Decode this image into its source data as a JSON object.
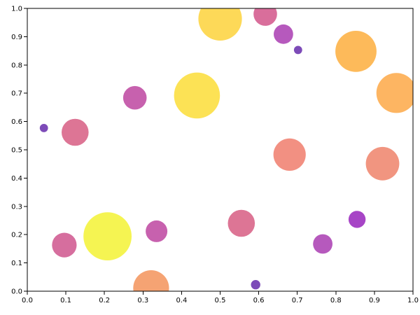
{
  "chart_data": {
    "type": "scatter",
    "variant": "bubble",
    "xlim": [
      0,
      1
    ],
    "ylim": [
      0,
      1
    ],
    "x_ticks": [
      "0.0",
      "0.1",
      "0.2",
      "0.3",
      "0.4",
      "0.5",
      "0.6",
      "0.7",
      "0.8",
      "0.9",
      "1.0"
    ],
    "y_ticks": [
      "0.0",
      "0.1",
      "0.2",
      "0.3",
      "0.4",
      "0.5",
      "0.6",
      "0.7",
      "0.8",
      "0.9",
      "1.0"
    ],
    "grid": false,
    "size_encoding": "relative bubble size",
    "color_encoding": "plasma-like (purple to yellow) by bubble size",
    "points": [
      {
        "x": 0.043,
        "y": 0.577,
        "size": 0.14,
        "color": "#5c1ea6"
      },
      {
        "x": 0.124,
        "y": 0.562,
        "size": 0.46,
        "color": "#d4527a"
      },
      {
        "x": 0.279,
        "y": 0.684,
        "size": 0.4,
        "color": "#b93a9a"
      },
      {
        "x": 0.44,
        "y": 0.692,
        "size": 0.78,
        "color": "#fbdb2b"
      },
      {
        "x": 0.5,
        "y": 0.963,
        "size": 0.74,
        "color": "#fdcf2e"
      },
      {
        "x": 0.617,
        "y": 0.98,
        "size": 0.4,
        "color": "#cf4a82"
      },
      {
        "x": 0.664,
        "y": 0.909,
        "size": 0.33,
        "color": "#a42fad"
      },
      {
        "x": 0.702,
        "y": 0.853,
        "size": 0.14,
        "color": "#5c1ea6"
      },
      {
        "x": 0.852,
        "y": 0.848,
        "size": 0.7,
        "color": "#fda931"
      },
      {
        "x": 0.957,
        "y": 0.701,
        "size": 0.68,
        "color": "#fda33b"
      },
      {
        "x": 0.68,
        "y": 0.483,
        "size": 0.55,
        "color": "#ef7463"
      },
      {
        "x": 0.921,
        "y": 0.451,
        "size": 0.57,
        "color": "#ee7a60"
      },
      {
        "x": 0.208,
        "y": 0.194,
        "size": 0.82,
        "color": "#f2f127"
      },
      {
        "x": 0.335,
        "y": 0.212,
        "size": 0.37,
        "color": "#b93a9a"
      },
      {
        "x": 0.096,
        "y": 0.163,
        "size": 0.42,
        "color": "#cc4a86"
      },
      {
        "x": 0.555,
        "y": 0.24,
        "size": 0.46,
        "color": "#d4527a"
      },
      {
        "x": 0.855,
        "y": 0.254,
        "size": 0.29,
        "color": "#9117b8"
      },
      {
        "x": 0.766,
        "y": 0.167,
        "size": 0.33,
        "color": "#a42fad"
      },
      {
        "x": 0.321,
        "y": 0.011,
        "size": 0.61,
        "color": "#f38c50"
      },
      {
        "x": 0.592,
        "y": 0.023,
        "size": 0.16,
        "color": "#5c1ea6"
      }
    ]
  }
}
